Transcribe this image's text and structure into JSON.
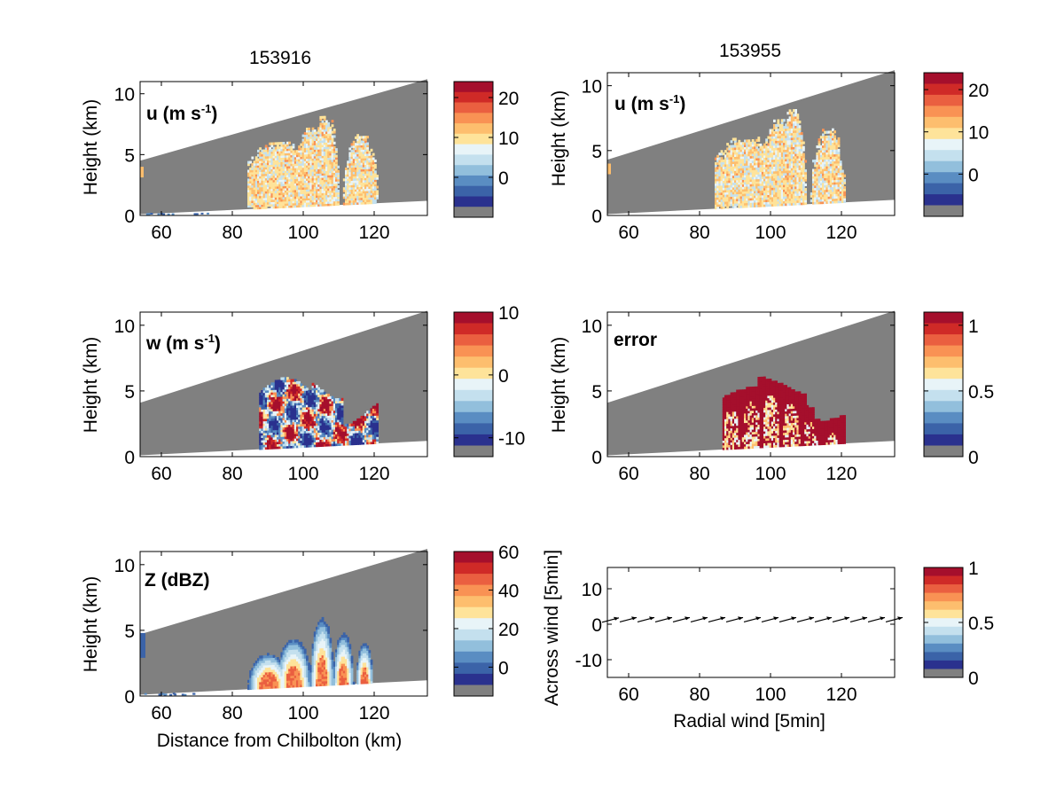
{
  "column_titles": [
    "153916",
    "153955"
  ],
  "chart_data": [
    {
      "type": "heatmap",
      "panel": "u-153916",
      "label_main": "u (m s",
      "label_sup": "-1",
      "label_end": ")",
      "ylabel": "Height (km)",
      "xlabel": "",
      "xticks": [
        60,
        80,
        100,
        120
      ],
      "yticks": [
        0,
        5,
        10
      ],
      "xlim": [
        54,
        135
      ],
      "ylim": [
        0,
        11
      ],
      "colorbar_ticks": [
        "20",
        "10",
        "0"
      ],
      "colorbar_range": [
        -10,
        24
      ]
    },
    {
      "type": "heatmap",
      "panel": "u-153955",
      "label_main": "u (m s",
      "label_sup": "-1",
      "label_end": ")",
      "ylabel": "Height (km)",
      "xlabel": "",
      "xticks": [
        60,
        80,
        100,
        120
      ],
      "yticks": [
        0,
        5,
        10
      ],
      "xlim": [
        54,
        135
      ],
      "ylim": [
        0,
        11
      ],
      "colorbar_ticks": [
        "20",
        "10",
        "0"
      ],
      "colorbar_range": [
        -10,
        24
      ]
    },
    {
      "type": "heatmap",
      "panel": "w-153916",
      "label_main": "w (m s",
      "label_sup": "-1",
      "label_end": ")",
      "ylabel": "Height (km)",
      "xlabel": "",
      "xticks": [
        60,
        80,
        100,
        120
      ],
      "yticks": [
        0,
        5,
        10
      ],
      "xlim": [
        54,
        135
      ],
      "ylim": [
        0,
        11
      ],
      "colorbar_ticks": [
        "10",
        "0",
        "-10"
      ],
      "colorbar_range": [
        -13,
        10
      ]
    },
    {
      "type": "heatmap",
      "panel": "error-153955",
      "label_main": "error",
      "label_sup": "",
      "label_end": "",
      "ylabel": "Height (km)",
      "xlabel": "",
      "xticks": [
        60,
        80,
        100,
        120
      ],
      "yticks": [
        0,
        5,
        10
      ],
      "xlim": [
        54,
        135
      ],
      "ylim": [
        0,
        11
      ],
      "colorbar_ticks": [
        "1",
        "0.5",
        "0"
      ],
      "colorbar_range": [
        0,
        1.1
      ]
    },
    {
      "type": "heatmap",
      "panel": "Z-153916",
      "label_main": "Z (dBZ)",
      "label_sup": "",
      "label_end": "",
      "ylabel": "Height (km)",
      "xlabel": "Distance from Chilbolton (km)",
      "xticks": [
        60,
        80,
        100,
        120
      ],
      "yticks": [
        0,
        5,
        10
      ],
      "xlim": [
        54,
        135
      ],
      "ylim": [
        0,
        11
      ],
      "colorbar_ticks": [
        "60",
        "40",
        "20",
        "0"
      ],
      "colorbar_range": [
        -15,
        60
      ]
    },
    {
      "type": "scatter",
      "panel": "wind-vectors",
      "label_main": "",
      "label_sup": "",
      "label_end": "",
      "ylabel": "Across wind [5min]",
      "xlabel": "Radial wind [5min]",
      "xticks": [
        60,
        80,
        100,
        120
      ],
      "yticks": [
        -10,
        0,
        10
      ],
      "xlim": [
        54,
        135
      ],
      "ylim": [
        -15,
        16
      ],
      "x": [
        55,
        60,
        65,
        70,
        75,
        80,
        85,
        90,
        95,
        100,
        105,
        110,
        115,
        120,
        125,
        130,
        135
      ],
      "y": [
        0.8,
        0.9,
        0.9,
        0.9,
        0.9,
        0.9,
        0.9,
        0.9,
        0.9,
        0.9,
        0.9,
        0.9,
        0.9,
        0.9,
        0.9,
        0.9,
        0.9
      ],
      "colorbar_ticks": [
        "1",
        "0.5",
        "0"
      ],
      "colorbar_range": [
        0,
        1
      ]
    }
  ],
  "palette": [
    "#808080",
    "#2a318e",
    "#3b63a8",
    "#5a8dc2",
    "#92bfdc",
    "#c4e0ee",
    "#e8f4f8",
    "#fee39a",
    "#fdbe6e",
    "#f99254",
    "#ea5f40",
    "#cf2a27",
    "#a50f2c"
  ],
  "colors": {
    "mask": "#808080",
    "axis": "#000000"
  }
}
